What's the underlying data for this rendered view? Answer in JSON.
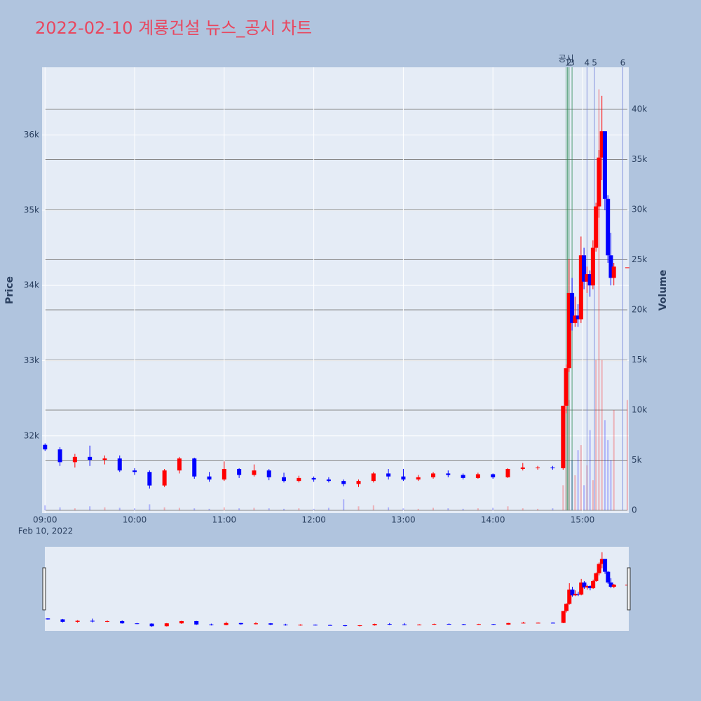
{
  "chart_data": {
    "type": "candlestick",
    "title": "2022-02-10 계룡건설 뉴스_공시 차트",
    "y_label": "Price",
    "y2_label": "Volume",
    "x_date_label": "Feb 10, 2022",
    "up_color": "#ff0000",
    "down_color": "#0000ff",
    "x": [
      "09:00",
      "09:10",
      "09:20",
      "09:30",
      "09:40",
      "09:50",
      "10:00",
      "10:10",
      "10:20",
      "10:30",
      "10:40",
      "10:50",
      "11:00",
      "11:10",
      "11:20",
      "11:30",
      "11:40",
      "11:50",
      "12:00",
      "12:10",
      "12:20",
      "12:30",
      "12:40",
      "12:50",
      "13:00",
      "13:10",
      "13:20",
      "13:30",
      "13:40",
      "13:50",
      "14:00",
      "14:10",
      "14:20",
      "14:30",
      "14:40",
      "14:47",
      "14:49",
      "14:51",
      "14:53",
      "14:55",
      "14:57",
      "14:59",
      "15:01",
      "15:03",
      "15:05",
      "15:07",
      "15:09",
      "15:11",
      "15:13",
      "15:15",
      "15:17",
      "15:19",
      "15:21",
      "15:30"
    ],
    "open": [
      31880,
      31820,
      31650,
      31720,
      31680,
      31700,
      31540,
      31520,
      31340,
      31540,
      31700,
      31460,
      31420,
      31560,
      31480,
      31540,
      31450,
      31400,
      31440,
      31420,
      31400,
      31360,
      31400,
      31500,
      31460,
      31420,
      31450,
      31500,
      31480,
      31440,
      31490,
      31450,
      31560,
      31580,
      31580,
      31570,
      32400,
      32900,
      33900,
      33500,
      33600,
      33550,
      34400,
      34050,
      34150,
      34000,
      34500,
      35050,
      35700,
      36050,
      35150,
      34400,
      34100,
      34240
    ],
    "high": [
      31900,
      31850,
      31760,
      31870,
      31740,
      31740,
      31570,
      31540,
      31560,
      31720,
      31710,
      31520,
      31660,
      31570,
      31620,
      31560,
      31510,
      31470,
      31460,
      31450,
      31420,
      31420,
      31520,
      31560,
      31560,
      31480,
      31520,
      31540,
      31500,
      31510,
      31500,
      31570,
      31640,
      31600,
      31600,
      32400,
      32950,
      34350,
      34100,
      33850,
      33750,
      34650,
      34500,
      34250,
      34200,
      34600,
      35100,
      35800,
      36520,
      36050,
      35200,
      34700,
      34300,
      34240
    ],
    "low": [
      31800,
      31600,
      31580,
      31600,
      31620,
      31520,
      31480,
      31300,
      31320,
      31500,
      31430,
      31390,
      31400,
      31440,
      31460,
      31410,
      31380,
      31380,
      31390,
      31380,
      31330,
      31320,
      31380,
      31420,
      31400,
      31400,
      31430,
      31450,
      31420,
      31430,
      31430,
      31440,
      31540,
      31550,
      31550,
      31550,
      32300,
      32850,
      33400,
      33450,
      33450,
      33500,
      33950,
      33900,
      33850,
      33950,
      34450,
      34900,
      35400,
      35000,
      34300,
      34000,
      34000,
      34240
    ],
    "close": [
      31820,
      31650,
      31720,
      31680,
      31700,
      31540,
      31520,
      31340,
      31540,
      31700,
      31460,
      31420,
      31560,
      31480,
      31540,
      31450,
      31400,
      31440,
      31420,
      31400,
      31360,
      31400,
      31500,
      31460,
      31420,
      31450,
      31500,
      31480,
      31440,
      31490,
      31450,
      31560,
      31580,
      31580,
      31570,
      32400,
      32900,
      33900,
      33500,
      33600,
      33550,
      34400,
      34050,
      34150,
      34000,
      34500,
      35050,
      35700,
      36050,
      35150,
      34400,
      34100,
      34250,
      34240
    ],
    "volume": [
      500,
      300,
      200,
      400,
      300,
      250,
      200,
      600,
      300,
      250,
      200,
      150,
      300,
      200,
      250,
      200,
      150,
      200,
      150,
      250,
      1100,
      400,
      500,
      300,
      200,
      150,
      250,
      200,
      150,
      200,
      250,
      400,
      200,
      150,
      200,
      2500,
      12500,
      11000,
      5000,
      3500,
      6000,
      6500,
      2500,
      4500,
      8000,
      3000,
      15000,
      42000,
      15000,
      9000,
      7000,
      5000,
      10000,
      11000
    ],
    "xlim": [
      "08:58",
      "15:31"
    ],
    "xticks": [
      "09:00",
      "10:00",
      "11:00",
      "12:00",
      "13:00",
      "14:00",
      "15:00"
    ],
    "ylim": [
      31010,
      36900
    ],
    "yticks": [
      {
        "value": 32000,
        "label": "32k"
      },
      {
        "value": 33000,
        "label": "33k"
      },
      {
        "value": 34000,
        "label": "34k"
      },
      {
        "value": 35000,
        "label": "35k"
      },
      {
        "value": 36000,
        "label": "36k"
      }
    ],
    "y2lim": [
      0,
      44200
    ],
    "y2ticks": [
      0,
      {
        "value": 5000,
        "label": "5k"
      },
      {
        "value": 10000,
        "label": "10k"
      },
      {
        "value": 15000,
        "label": "15k"
      },
      {
        "value": 20000,
        "label": "20k"
      },
      {
        "value": 25000,
        "label": "25k"
      },
      {
        "value": 30000,
        "label": "30k"
      },
      {
        "value": 35000,
        "label": "35k"
      },
      {
        "value": 40000,
        "label": "40k"
      }
    ],
    "events": [
      {
        "time": "14:49",
        "label": "공시",
        "color": "#2e8b57"
      },
      {
        "time": "14:50",
        "label": "1",
        "color": "#2e8b57"
      },
      {
        "time": "14:51",
        "label": "2",
        "color": "#2e8b57"
      },
      {
        "time": "14:53",
        "label": "3",
        "color": "#2e8b57"
      },
      {
        "time": "15:03",
        "label": "4",
        "color": "#6f7fd8"
      },
      {
        "time": "15:08",
        "label": "5",
        "color": "#6f7fd8"
      },
      {
        "time": "15:27",
        "label": "6",
        "color": "#6f7fd8"
      }
    ]
  }
}
